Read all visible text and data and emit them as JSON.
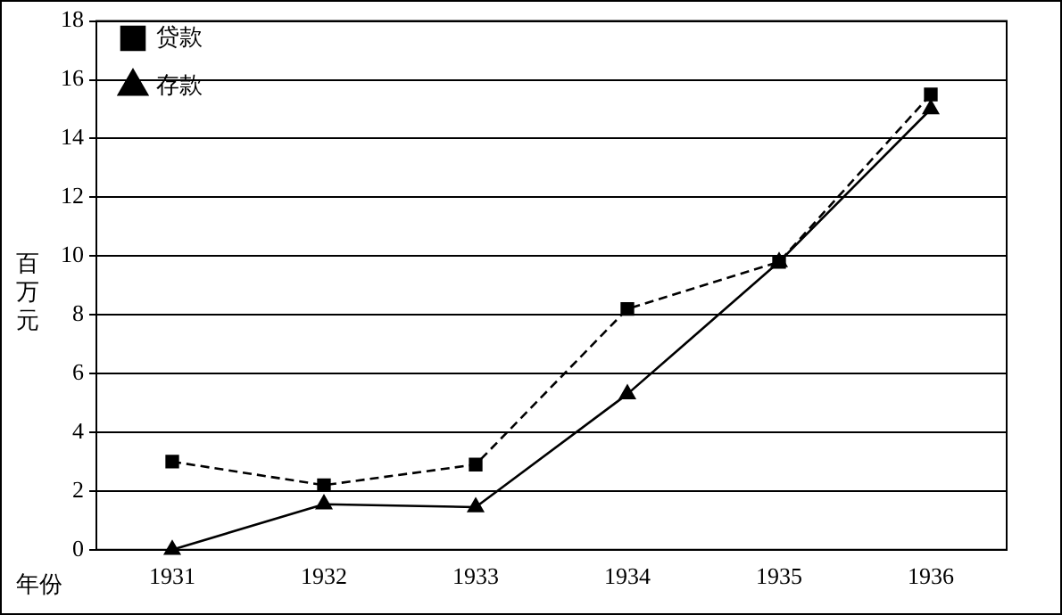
{
  "chart_data": {
    "type": "line",
    "xlabel": "年份",
    "ylabel": "百万元",
    "categories": [
      "1931",
      "1932",
      "1933",
      "1934",
      "1935",
      "1936"
    ],
    "series": [
      {
        "name": "贷款",
        "color": "#000000",
        "line_style": "dashed",
        "marker": "square",
        "values": [
          3.0,
          2.2,
          2.9,
          8.2,
          9.8,
          15.5
        ]
      },
      {
        "name": "存款",
        "color": "#000000",
        "line_style": "solid",
        "marker": "triangle",
        "values": [
          0,
          1.55,
          1.45,
          5.3,
          9.8,
          15.0
        ]
      }
    ],
    "ylim": [
      0,
      18
    ],
    "yticks": [
      0,
      2,
      4,
      6,
      8,
      10,
      12,
      14,
      16,
      18
    ],
    "grid": "y",
    "legend": "top left"
  }
}
